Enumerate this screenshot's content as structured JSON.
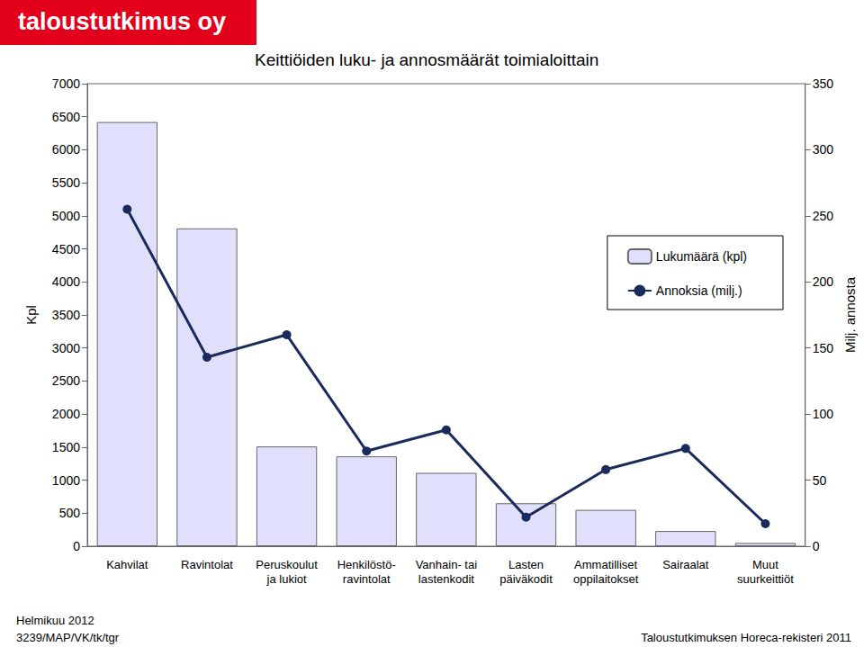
{
  "chart_data": {
    "type": "bar",
    "title": "Keittiöiden luku- ja annosmäärät toimialoittain",
    "brand": "taloustutkimus oy",
    "date_note": "Helmikuu 2012",
    "code_note": "3239/MAP/VK/tk/tgr",
    "source": "Taloustutkimuksen Horeca-rekisteri 2011",
    "y_label": "Kpl",
    "y2_label": "Milj. annosta",
    "categories": [
      "Kahvilat",
      "Ravintolat",
      "Peruskoulut\nja lukiot",
      "Henkilöstö-\nravintolat",
      "Vanhain- tai\nlastenkodit",
      "Lasten\npäiväkodit",
      "Ammatilliset\noppilaitokset",
      "Sairaalat",
      "Muut\nsuurkeittiöt"
    ],
    "series": [
      {
        "name": "Lukumäärä (kpl)",
        "type": "bar",
        "color": "#e0e0fc",
        "values": [
          6420,
          4810,
          1510,
          1360,
          1110,
          650,
          550,
          230,
          50
        ]
      },
      {
        "name": "Annoksia (milj.)",
        "type": "line",
        "axis": "y2",
        "color": "#1b2a5c",
        "marker": "circle",
        "line_style": "solid",
        "values": [
          255,
          143,
          160,
          72,
          88,
          22,
          58,
          74,
          17
        ]
      }
    ],
    "ylim": [
      0,
      7000
    ],
    "yticks": [
      0,
      500,
      1000,
      1500,
      2000,
      2500,
      3000,
      3500,
      4000,
      4500,
      5000,
      5500,
      6000,
      6500,
      7000
    ],
    "y2lim": [
      0,
      350
    ],
    "y2ticks": [
      0,
      50,
      100,
      150,
      200,
      250,
      300,
      350
    ],
    "grid": false,
    "legend": "right"
  }
}
